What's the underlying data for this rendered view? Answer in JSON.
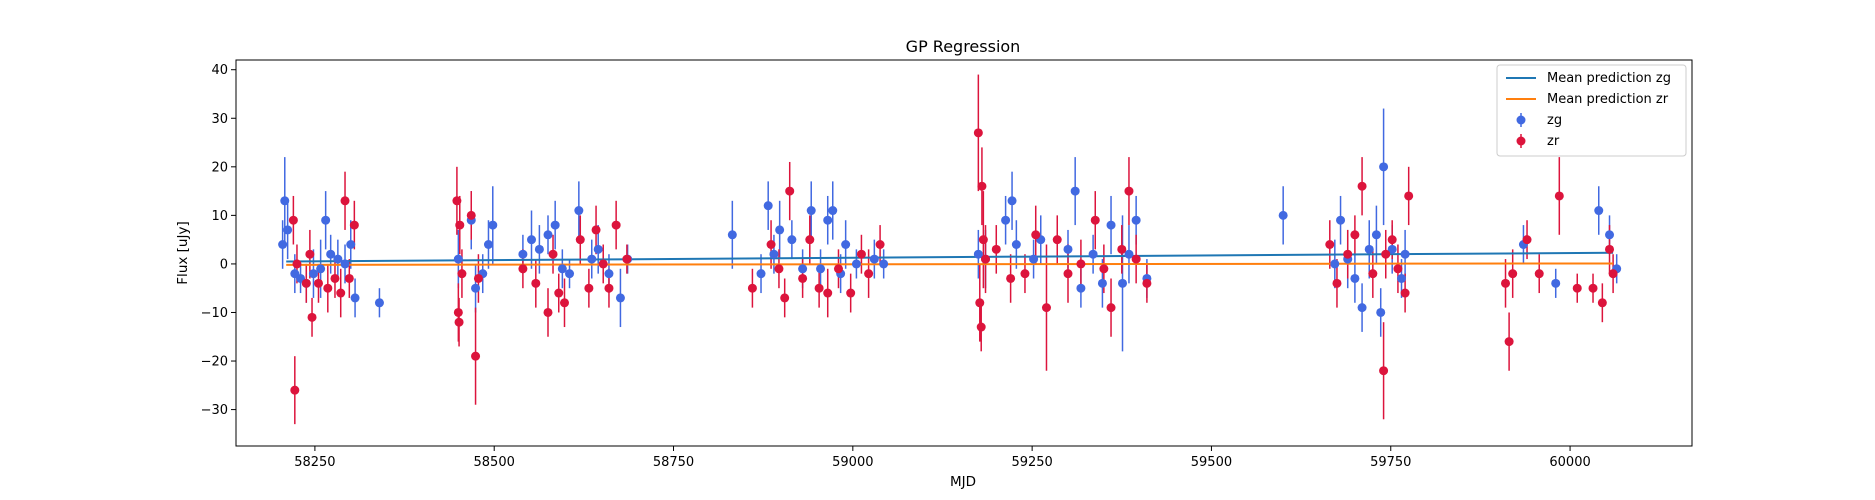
{
  "chart_data": {
    "type": "scatter",
    "title": "GP Regression",
    "xlabel": "MJD",
    "ylabel": "Flux [uJy]",
    "xlim": [
      58140,
      60170
    ],
    "ylim": [
      -37.5,
      42
    ],
    "xticks": [
      58250,
      58500,
      58750,
      59000,
      59250,
      59500,
      59750,
      60000
    ],
    "yticks": [
      -30,
      -20,
      -10,
      0,
      10,
      20,
      30,
      40
    ],
    "grid": false,
    "legend_position": "top-right",
    "lines": [
      {
        "name": "Mean prediction zg",
        "color": "#1f77b4",
        "x": [
          58210,
          60060
        ],
        "y": [
          0.5,
          2.3
        ]
      },
      {
        "name": "Mean prediction zr",
        "color": "#ff7f0e",
        "x": [
          58210,
          60060
        ],
        "y": [
          -0.2,
          0.1
        ]
      }
    ],
    "series": [
      {
        "name": "zg",
        "color": "#4169e1",
        "points": [
          {
            "x": 58205,
            "y": 4,
            "err": 5
          },
          {
            "x": 58208,
            "y": 13,
            "err": 9
          },
          {
            "x": 58212,
            "y": 7,
            "err": 6
          },
          {
            "x": 58222,
            "y": -2,
            "err": 4
          },
          {
            "x": 58230,
            "y": -3,
            "err": 3
          },
          {
            "x": 58238,
            "y": -4,
            "err": 4
          },
          {
            "x": 58248,
            "y": -2,
            "err": 5
          },
          {
            "x": 58258,
            "y": -1,
            "err": 6
          },
          {
            "x": 58265,
            "y": 9,
            "err": 6
          },
          {
            "x": 58272,
            "y": 2,
            "err": 4
          },
          {
            "x": 58282,
            "y": 1,
            "err": 4
          },
          {
            "x": 58292,
            "y": 0,
            "err": 4
          },
          {
            "x": 58300,
            "y": 4,
            "err": 5
          },
          {
            "x": 58306,
            "y": -7,
            "err": 4
          },
          {
            "x": 58340,
            "y": -8,
            "err": 3
          },
          {
            "x": 58450,
            "y": 1,
            "err": 6
          },
          {
            "x": 58468,
            "y": 9,
            "err": 6
          },
          {
            "x": 58474,
            "y": -5,
            "err": 5
          },
          {
            "x": 58484,
            "y": -2,
            "err": 4
          },
          {
            "x": 58492,
            "y": 4,
            "err": 5
          },
          {
            "x": 58498,
            "y": 8,
            "err": 8
          },
          {
            "x": 58540,
            "y": 2,
            "err": 4
          },
          {
            "x": 58552,
            "y": 5,
            "err": 6
          },
          {
            "x": 58563,
            "y": 3,
            "err": 5
          },
          {
            "x": 58575,
            "y": 6,
            "err": 4
          },
          {
            "x": 58585,
            "y": 8,
            "err": 5
          },
          {
            "x": 58595,
            "y": -1,
            "err": 4
          },
          {
            "x": 58605,
            "y": -2,
            "err": 3
          },
          {
            "x": 58618,
            "y": 11,
            "err": 6
          },
          {
            "x": 58636,
            "y": 1,
            "err": 4
          },
          {
            "x": 58645,
            "y": 3,
            "err": 5
          },
          {
            "x": 58660,
            "y": -2,
            "err": 4
          },
          {
            "x": 58676,
            "y": -7,
            "err": 6
          },
          {
            "x": 58686,
            "y": 1,
            "err": 3
          },
          {
            "x": 58832,
            "y": 6,
            "err": 7
          },
          {
            "x": 58872,
            "y": -2,
            "err": 4
          },
          {
            "x": 58882,
            "y": 12,
            "err": 5
          },
          {
            "x": 58890,
            "y": 2,
            "err": 4
          },
          {
            "x": 58898,
            "y": 7,
            "err": 6
          },
          {
            "x": 58915,
            "y": 5,
            "err": 4
          },
          {
            "x": 58930,
            "y": -1,
            "err": 4
          },
          {
            "x": 58942,
            "y": 11,
            "err": 6
          },
          {
            "x": 58955,
            "y": -1,
            "err": 4
          },
          {
            "x": 58965,
            "y": 9,
            "err": 5
          },
          {
            "x": 58972,
            "y": 11,
            "err": 6
          },
          {
            "x": 58983,
            "y": -2,
            "err": 4
          },
          {
            "x": 58990,
            "y": 4,
            "err": 5
          },
          {
            "x": 59005,
            "y": 0,
            "err": 3
          },
          {
            "x": 59030,
            "y": 1,
            "err": 4
          },
          {
            "x": 59043,
            "y": 0,
            "err": 3
          },
          {
            "x": 59175,
            "y": 2,
            "err": 5
          },
          {
            "x": 59185,
            "y": 1,
            "err": 6
          },
          {
            "x": 59213,
            "y": 9,
            "err": 5
          },
          {
            "x": 59222,
            "y": 13,
            "err": 6
          },
          {
            "x": 59228,
            "y": 4,
            "err": 5
          },
          {
            "x": 59252,
            "y": 1,
            "err": 4
          },
          {
            "x": 59262,
            "y": 5,
            "err": 5
          },
          {
            "x": 59300,
            "y": 3,
            "err": 4
          },
          {
            "x": 59310,
            "y": 15,
            "err": 7
          },
          {
            "x": 59318,
            "y": -5,
            "err": 4
          },
          {
            "x": 59335,
            "y": 2,
            "err": 4
          },
          {
            "x": 59348,
            "y": -4,
            "err": 5
          },
          {
            "x": 59360,
            "y": 8,
            "err": 6
          },
          {
            "x": 59376,
            "y": -4,
            "err": 14
          },
          {
            "x": 59385,
            "y": 2,
            "err": 6
          },
          {
            "x": 59395,
            "y": 9,
            "err": 5
          },
          {
            "x": 59410,
            "y": -3,
            "err": 4
          },
          {
            "x": 59600,
            "y": 10,
            "err": 6
          },
          {
            "x": 59672,
            "y": 0,
            "err": 5
          },
          {
            "x": 59680,
            "y": 9,
            "err": 5
          },
          {
            "x": 59690,
            "y": 1,
            "err": 6
          },
          {
            "x": 59700,
            "y": -3,
            "err": 5
          },
          {
            "x": 59710,
            "y": -9,
            "err": 5
          },
          {
            "x": 59720,
            "y": 3,
            "err": 6
          },
          {
            "x": 59730,
            "y": 6,
            "err": 6
          },
          {
            "x": 59736,
            "y": -10,
            "err": 5
          },
          {
            "x": 59740,
            "y": 20,
            "err": 12
          },
          {
            "x": 59752,
            "y": 3,
            "err": 5
          },
          {
            "x": 59765,
            "y": -3,
            "err": 4
          },
          {
            "x": 59770,
            "y": 2,
            "err": 5
          },
          {
            "x": 59935,
            "y": 4,
            "err": 4
          },
          {
            "x": 59980,
            "y": -4,
            "err": 3
          },
          {
            "x": 60040,
            "y": 11,
            "err": 5
          },
          {
            "x": 60055,
            "y": 6,
            "err": 4
          },
          {
            "x": 60065,
            "y": -1,
            "err": 3
          }
        ]
      },
      {
        "name": "zr",
        "color": "#dc143c",
        "points": [
          {
            "x": 58220,
            "y": 9,
            "err": 5
          },
          {
            "x": 58222,
            "y": -26,
            "err": 7
          },
          {
            "x": 58225,
            "y": 0,
            "err": 4
          },
          {
            "x": 58238,
            "y": -4,
            "err": 4
          },
          {
            "x": 58243,
            "y": 2,
            "err": 5
          },
          {
            "x": 58246,
            "y": -11,
            "err": 4
          },
          {
            "x": 58255,
            "y": -4,
            "err": 4
          },
          {
            "x": 58268,
            "y": -5,
            "err": 5
          },
          {
            "x": 58278,
            "y": -3,
            "err": 4
          },
          {
            "x": 58286,
            "y": -6,
            "err": 5
          },
          {
            "x": 58292,
            "y": 13,
            "err": 6
          },
          {
            "x": 58298,
            "y": -3,
            "err": 4
          },
          {
            "x": 58305,
            "y": 8,
            "err": 5
          },
          {
            "x": 58448,
            "y": 13,
            "err": 7
          },
          {
            "x": 58450,
            "y": -10,
            "err": 6
          },
          {
            "x": 58451,
            "y": -12,
            "err": 5
          },
          {
            "x": 58452,
            "y": 8,
            "err": 6
          },
          {
            "x": 58455,
            "y": -2,
            "err": 5
          },
          {
            "x": 58468,
            "y": 10,
            "err": 5
          },
          {
            "x": 58474,
            "y": -19,
            "err": 10
          },
          {
            "x": 58478,
            "y": -3,
            "err": 5
          },
          {
            "x": 58540,
            "y": -1,
            "err": 4
          },
          {
            "x": 58558,
            "y": -4,
            "err": 5
          },
          {
            "x": 58575,
            "y": -10,
            "err": 5
          },
          {
            "x": 58582,
            "y": 2,
            "err": 4
          },
          {
            "x": 58590,
            "y": -6,
            "err": 4
          },
          {
            "x": 58598,
            "y": -8,
            "err": 5
          },
          {
            "x": 58620,
            "y": 5,
            "err": 5
          },
          {
            "x": 58632,
            "y": -5,
            "err": 4
          },
          {
            "x": 58642,
            "y": 7,
            "err": 5
          },
          {
            "x": 58652,
            "y": 0,
            "err": 4
          },
          {
            "x": 58660,
            "y": -5,
            "err": 4
          },
          {
            "x": 58670,
            "y": 8,
            "err": 5
          },
          {
            "x": 58685,
            "y": 1,
            "err": 3
          },
          {
            "x": 58860,
            "y": -5,
            "err": 4
          },
          {
            "x": 58886,
            "y": 4,
            "err": 5
          },
          {
            "x": 58897,
            "y": -1,
            "err": 4
          },
          {
            "x": 58905,
            "y": -7,
            "err": 4
          },
          {
            "x": 58912,
            "y": 15,
            "err": 6
          },
          {
            "x": 58930,
            "y": -3,
            "err": 4
          },
          {
            "x": 58940,
            "y": 5,
            "err": 5
          },
          {
            "x": 58953,
            "y": -5,
            "err": 4
          },
          {
            "x": 58965,
            "y": -6,
            "err": 5
          },
          {
            "x": 58980,
            "y": -1,
            "err": 4
          },
          {
            "x": 58997,
            "y": -6,
            "err": 4
          },
          {
            "x": 59012,
            "y": 2,
            "err": 4
          },
          {
            "x": 59022,
            "y": -2,
            "err": 5
          },
          {
            "x": 59038,
            "y": 4,
            "err": 4
          },
          {
            "x": 59175,
            "y": 27,
            "err": 12
          },
          {
            "x": 59177,
            "y": -8,
            "err": 8
          },
          {
            "x": 59179,
            "y": -13,
            "err": 5
          },
          {
            "x": 59180,
            "y": 16,
            "err": 8
          },
          {
            "x": 59182,
            "y": 5,
            "err": 10
          },
          {
            "x": 59185,
            "y": 1,
            "err": 7
          },
          {
            "x": 59200,
            "y": 3,
            "err": 5
          },
          {
            "x": 59220,
            "y": -3,
            "err": 5
          },
          {
            "x": 59240,
            "y": -2,
            "err": 4
          },
          {
            "x": 59255,
            "y": 6,
            "err": 6
          },
          {
            "x": 59270,
            "y": -9,
            "err": 13
          },
          {
            "x": 59285,
            "y": 5,
            "err": 5
          },
          {
            "x": 59300,
            "y": -2,
            "err": 6
          },
          {
            "x": 59318,
            "y": 0,
            "err": 5
          },
          {
            "x": 59338,
            "y": 9,
            "err": 6
          },
          {
            "x": 59350,
            "y": -1,
            "err": 5
          },
          {
            "x": 59360,
            "y": -9,
            "err": 6
          },
          {
            "x": 59375,
            "y": 3,
            "err": 5
          },
          {
            "x": 59385,
            "y": 15,
            "err": 7
          },
          {
            "x": 59395,
            "y": 1,
            "err": 5
          },
          {
            "x": 59410,
            "y": -4,
            "err": 4
          },
          {
            "x": 59665,
            "y": 4,
            "err": 5
          },
          {
            "x": 59675,
            "y": -4,
            "err": 5
          },
          {
            "x": 59690,
            "y": 2,
            "err": 5
          },
          {
            "x": 59700,
            "y": 6,
            "err": 4
          },
          {
            "x": 59710,
            "y": 16,
            "err": 6
          },
          {
            "x": 59725,
            "y": -2,
            "err": 5
          },
          {
            "x": 59740,
            "y": -22,
            "err": 10
          },
          {
            "x": 59743,
            "y": 2,
            "err": 5
          },
          {
            "x": 59752,
            "y": 5,
            "err": 4
          },
          {
            "x": 59760,
            "y": -1,
            "err": 5
          },
          {
            "x": 59770,
            "y": -6,
            "err": 4
          },
          {
            "x": 59775,
            "y": 14,
            "err": 6
          },
          {
            "x": 59910,
            "y": -4,
            "err": 5
          },
          {
            "x": 59915,
            "y": -16,
            "err": 6
          },
          {
            "x": 59920,
            "y": -2,
            "err": 5
          },
          {
            "x": 59940,
            "y": 5,
            "err": 4
          },
          {
            "x": 59957,
            "y": -2,
            "err": 4
          },
          {
            "x": 59985,
            "y": 14,
            "err": 8
          },
          {
            "x": 60010,
            "y": -5,
            "err": 3
          },
          {
            "x": 60032,
            "y": -5,
            "err": 3
          },
          {
            "x": 60045,
            "y": -8,
            "err": 4
          },
          {
            "x": 60055,
            "y": 3,
            "err": 5
          },
          {
            "x": 60060,
            "y": -2,
            "err": 4
          }
        ]
      }
    ]
  }
}
